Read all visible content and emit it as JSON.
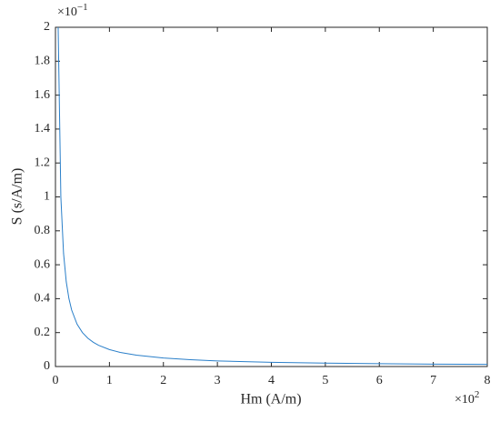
{
  "chart_data": {
    "type": "line",
    "x_label": "Hm (A/m)",
    "y_label": "S (s/A/m)",
    "x_exponent": {
      "base": "×10",
      "power": "2"
    },
    "y_exponent": {
      "base": "×10",
      "power": "−1"
    },
    "x": [
      0.05,
      0.1,
      0.15,
      0.2,
      0.25,
      0.3,
      0.4,
      0.5,
      0.6,
      0.7,
      0.8,
      1,
      1.2,
      1.5,
      2,
      2.5,
      3,
      4,
      5,
      6,
      7,
      8
    ],
    "series": [
      {
        "color": "#2a7fc9",
        "values": [
          2,
          1,
          0.667,
          0.5,
          0.4,
          0.333,
          0.25,
          0.2,
          0.167,
          0.143,
          0.125,
          0.1,
          0.083,
          0.067,
          0.05,
          0.04,
          0.033,
          0.025,
          0.02,
          0.017,
          0.014,
          0.0125
        ]
      }
    ],
    "xlim": [
      0,
      8
    ],
    "xticks": [
      0,
      1,
      2,
      3,
      4,
      5,
      6,
      7,
      8
    ],
    "ylim": [
      0,
      2
    ],
    "yticks": [
      0,
      0.2,
      0.4,
      0.6,
      0.8,
      1,
      1.2,
      1.4,
      1.6,
      1.8,
      2
    ],
    "grid": false
  }
}
